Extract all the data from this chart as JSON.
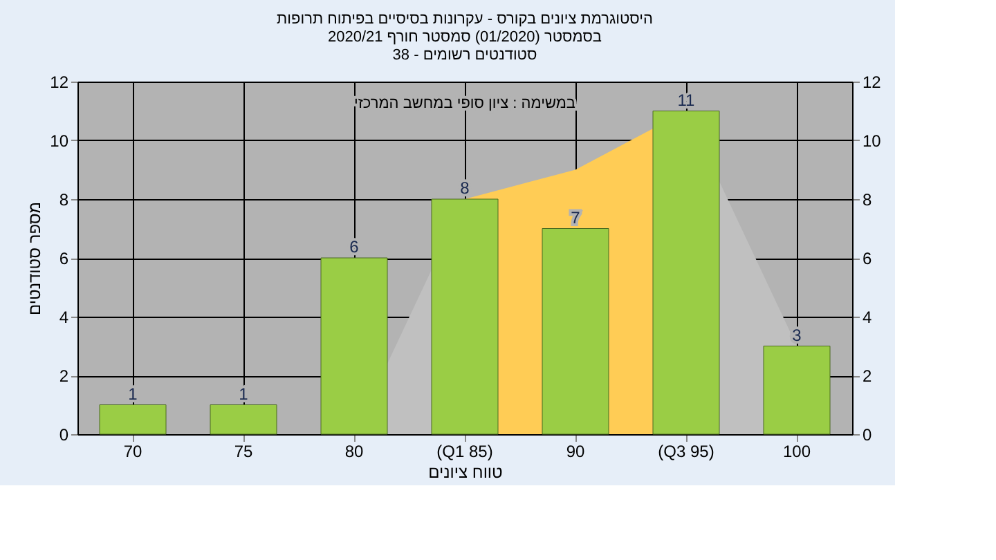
{
  "chart_data": {
    "type": "bar",
    "title": [
      "היסטוגרמת ציונים בקורס - עקרונות בסיסיים בפיתוח תרופות",
      "בסמסטר (01/2020) סמסטר חורף 2020/21",
      "סטודנטים רשומים - 38"
    ],
    "xlabel": "טווח ציונים",
    "ylabel": "מספר סטודנטים",
    "annotations": [
      "במשימה : ציון סופי במחשב המרכזי"
    ],
    "categories": [
      "70",
      "75",
      "80",
      "(Q1 85)",
      "90",
      "(Q3 95)",
      "100"
    ],
    "series": [
      {
        "type": "area",
        "color": "#c0c0c0",
        "values": [
          null,
          null,
          0,
          8,
          null,
          null,
          null
        ]
      },
      {
        "type": "area",
        "color": "#c0c0c0",
        "values": [
          null,
          null,
          null,
          null,
          null,
          11,
          3
        ]
      },
      {
        "type": "area",
        "color": "#ffcc55",
        "values": [
          null,
          null,
          null,
          8,
          9,
          11,
          null
        ]
      },
      {
        "color": "#9acd45",
        "values": [
          1,
          1,
          6,
          8,
          7,
          11,
          3
        ],
        "value_labels": [
          "1",
          "1",
          "6",
          "8",
          "7",
          "11",
          "3"
        ]
      }
    ],
    "ylim": [
      0,
      12
    ],
    "yticks": [
      0,
      2,
      4,
      6,
      8,
      10,
      12
    ],
    "y2lim": [
      0,
      12
    ],
    "y2ticks": [
      0,
      2,
      4,
      6,
      8,
      10,
      12
    ],
    "grid": true
  }
}
